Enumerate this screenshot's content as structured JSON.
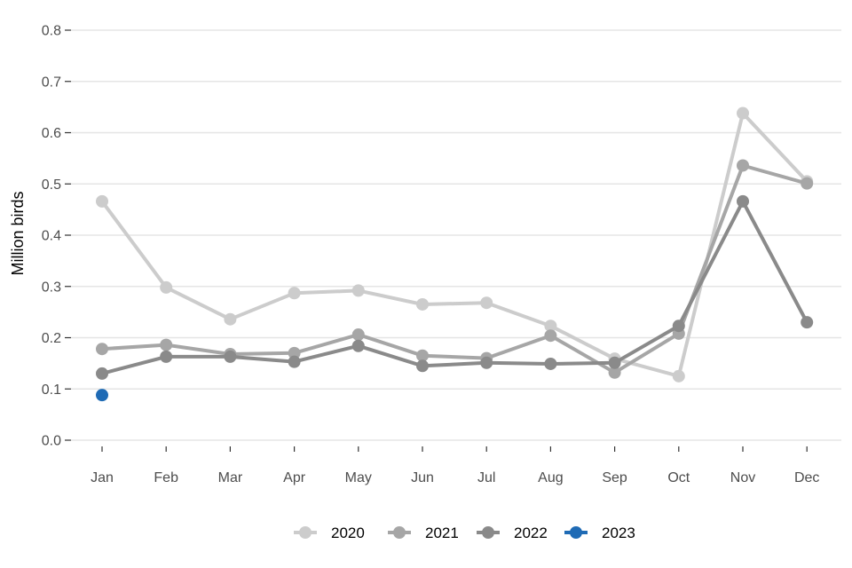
{
  "chart_data": {
    "type": "line",
    "title": "",
    "xlabel": "",
    "ylabel": "Million birds",
    "ylim": [
      0,
      0.8
    ],
    "yticks": [
      "0.0",
      "0.1",
      "0.2",
      "0.3",
      "0.4",
      "0.5",
      "0.6",
      "0.7",
      "0.8"
    ],
    "grid": "horizontal",
    "legend_position": "bottom",
    "categories": [
      "Jan",
      "Feb",
      "Mar",
      "Apr",
      "May",
      "Jun",
      "Jul",
      "Aug",
      "Sep",
      "Oct",
      "Nov",
      "Dec"
    ],
    "series": [
      {
        "name": "2020",
        "color": "#cccccc",
        "values": [
          0.466,
          0.298,
          0.236,
          0.287,
          0.292,
          0.265,
          0.268,
          0.223,
          0.159,
          0.125,
          0.638,
          0.505
        ]
      },
      {
        "name": "2021",
        "color": "#a6a6a6",
        "values": [
          0.178,
          0.186,
          0.168,
          0.17,
          0.206,
          0.165,
          0.16,
          0.204,
          0.132,
          0.208,
          0.536,
          0.501
        ]
      },
      {
        "name": "2022",
        "color": "#8a8a8a",
        "values": [
          0.13,
          0.163,
          0.163,
          0.153,
          0.184,
          0.145,
          0.151,
          0.149,
          0.151,
          0.223,
          0.466,
          0.23
        ]
      },
      {
        "name": "2023",
        "color": "#1f6bb5",
        "values": [
          0.088,
          null,
          null,
          null,
          null,
          null,
          null,
          null,
          null,
          null,
          null,
          null
        ]
      }
    ]
  }
}
